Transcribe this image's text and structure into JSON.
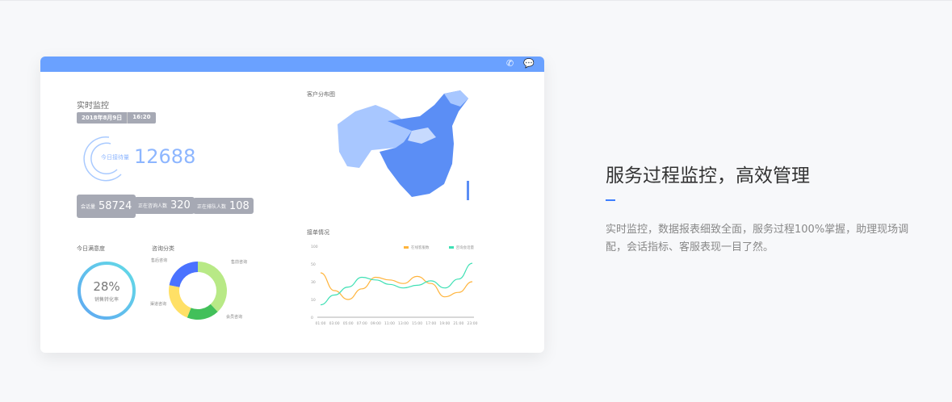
{
  "header": {
    "icons": [
      "phone-icon",
      "chat-icon"
    ],
    "accent": "#6aa1ff"
  },
  "realtime": {
    "title": "实时监控",
    "date": "2018年8月9日",
    "time": "16:20",
    "today_label": "今日接待量",
    "today_value": "12688",
    "stats": [
      {
        "label": "会话量",
        "value": "58724"
      },
      {
        "label": "正在咨询人数",
        "value": "320"
      },
      {
        "label": "正在排队人数",
        "value": "108"
      }
    ]
  },
  "satisfaction": {
    "title": "今日满意度",
    "value": "28%",
    "label": "销售转化率",
    "fraction": 0.28
  },
  "category": {
    "title": "咨询分类",
    "slices": [
      {
        "label": "售前咨询",
        "value": 38,
        "color": "#b8e986"
      },
      {
        "label": "会员咨询",
        "value": 18,
        "color": "#42c05a"
      },
      {
        "label": "渠道咨询",
        "value": 22,
        "color": "#ffe066"
      },
      {
        "label": "售后咨询",
        "value": 22,
        "color": "#4a72ff"
      }
    ]
  },
  "map": {
    "title": "客户分布图"
  },
  "chart_data": {
    "type": "line",
    "title": "接单情况",
    "yticks": [
      "100",
      "50",
      "30",
      "10",
      "0"
    ],
    "categories": [
      "01:00",
      "03:00",
      "05:00",
      "07:00",
      "09:00",
      "11:00",
      "13:00",
      "15:00",
      "17:00",
      "19:00",
      "21:00",
      "23:00"
    ],
    "series": [
      {
        "name": "在线客服数",
        "color": "#ffb43c",
        "values": [
          40,
          20,
          10,
          22,
          35,
          32,
          28,
          36,
          28,
          13,
          18,
          30
        ]
      },
      {
        "name": "咨询会话量",
        "color": "#3ee0b4",
        "values": [
          7,
          15,
          24,
          35,
          32,
          27,
          23,
          26,
          31,
          23,
          33,
          52
        ]
      }
    ]
  },
  "promo": {
    "title": "服务过程监控，高效管理",
    "text": "实时监控，数据报表细致全面，服务过程100%掌握，助理现场调配，会话指标、客服表现一目了然。"
  }
}
